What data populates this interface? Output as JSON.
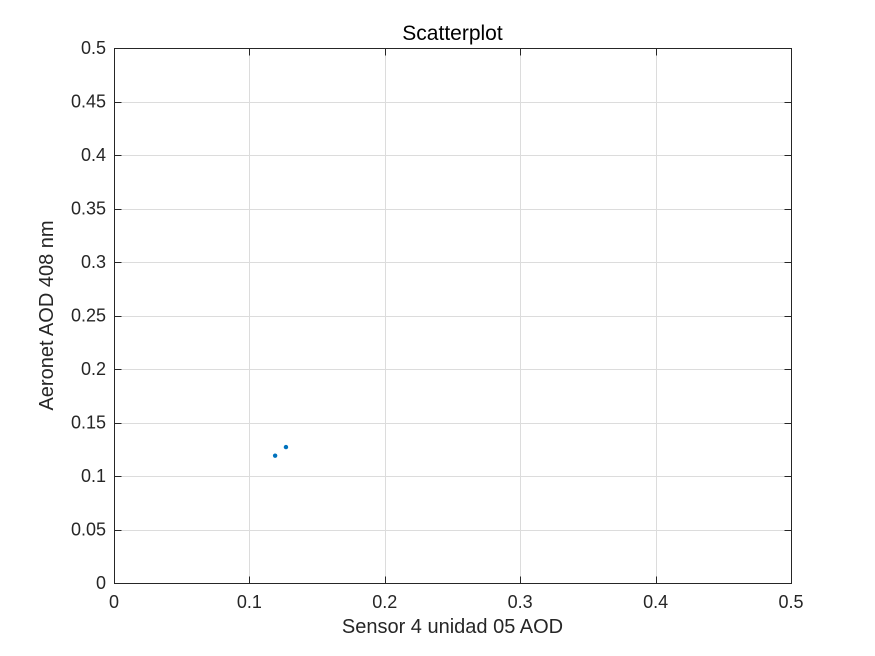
{
  "chart_data": {
    "type": "scatter",
    "title": "Scatterplot",
    "xlabel": "Sensor 4 unidad 05 AOD",
    "ylabel": "Aeronet AOD 408 nm",
    "xlim": [
      0,
      0.5
    ],
    "ylim": [
      0,
      0.5
    ],
    "xticks": [
      0,
      0.1,
      0.2,
      0.3,
      0.4,
      0.5
    ],
    "xtick_labels": [
      "0",
      "0.1",
      "0.2",
      "0.3",
      "0.4",
      "0.5"
    ],
    "yticks": [
      0,
      0.05,
      0.1,
      0.15,
      0.2,
      0.25,
      0.3,
      0.35,
      0.4,
      0.45,
      0.5
    ],
    "ytick_labels": [
      "0",
      "0.05",
      "0.1",
      "0.15",
      "0.2",
      "0.25",
      "0.3",
      "0.35",
      "0.4",
      "0.45",
      "0.5"
    ],
    "grid": true,
    "marker_color": "#0072BD",
    "points": [
      {
        "x": 0.119,
        "y": 0.119
      },
      {
        "x": 0.127,
        "y": 0.127
      }
    ]
  }
}
